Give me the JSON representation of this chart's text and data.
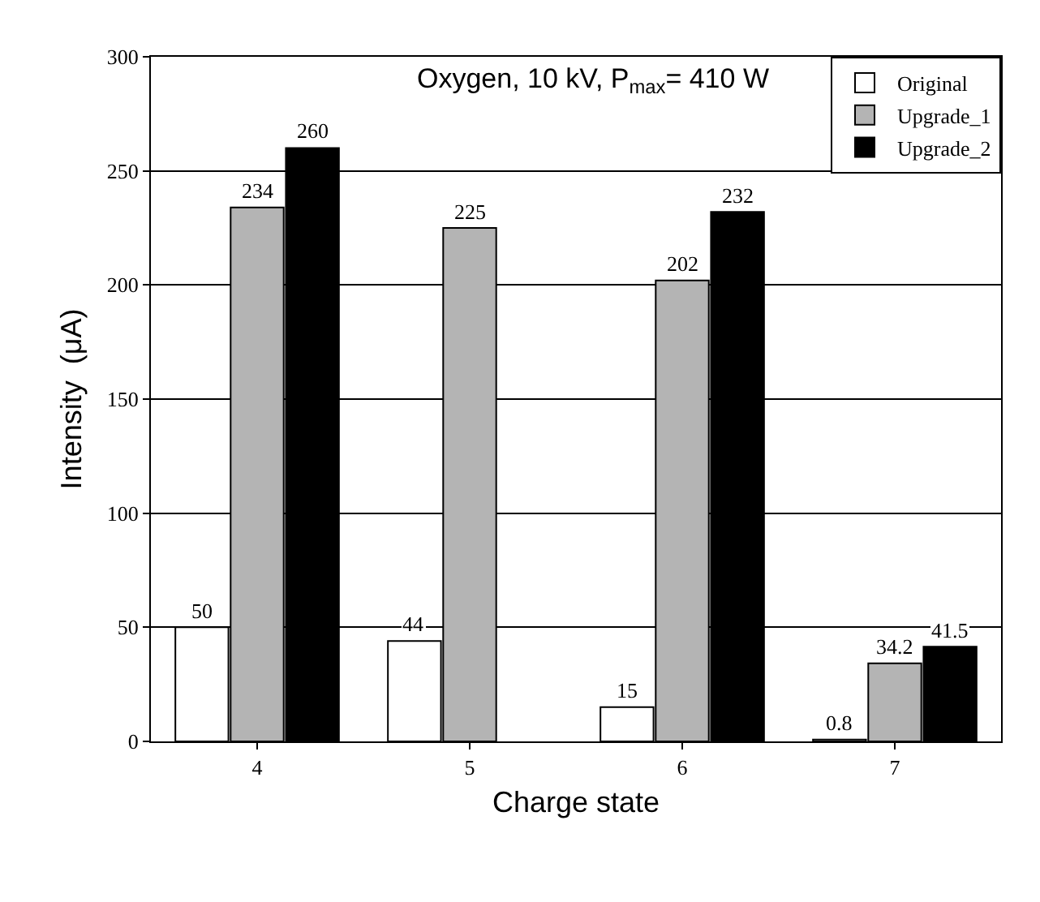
{
  "chart_data": {
    "type": "bar",
    "title": "Oxygen, 10 kV, P$_{max}$= 410 W",
    "xlabel": "Charge state",
    "ylabel": "Intensity  (μA)",
    "categories": [
      "4",
      "5",
      "6",
      "7"
    ],
    "series": [
      {
        "name": "Original",
        "color": "#ffffff",
        "values": [
          50,
          44,
          15,
          0.8
        ]
      },
      {
        "name": "Upgrade_1",
        "color": "#b4b4b4",
        "values": [
          234,
          225,
          202,
          34.2
        ]
      },
      {
        "name": "Upgrade_2",
        "color": "#000000",
        "values": [
          260,
          null,
          232,
          41.5
        ]
      }
    ],
    "ylim": [
      0,
      300
    ],
    "yticks": [
      0,
      50,
      100,
      150,
      200,
      250,
      300
    ],
    "grid": "y",
    "legend": "top right",
    "data_labels": true
  }
}
